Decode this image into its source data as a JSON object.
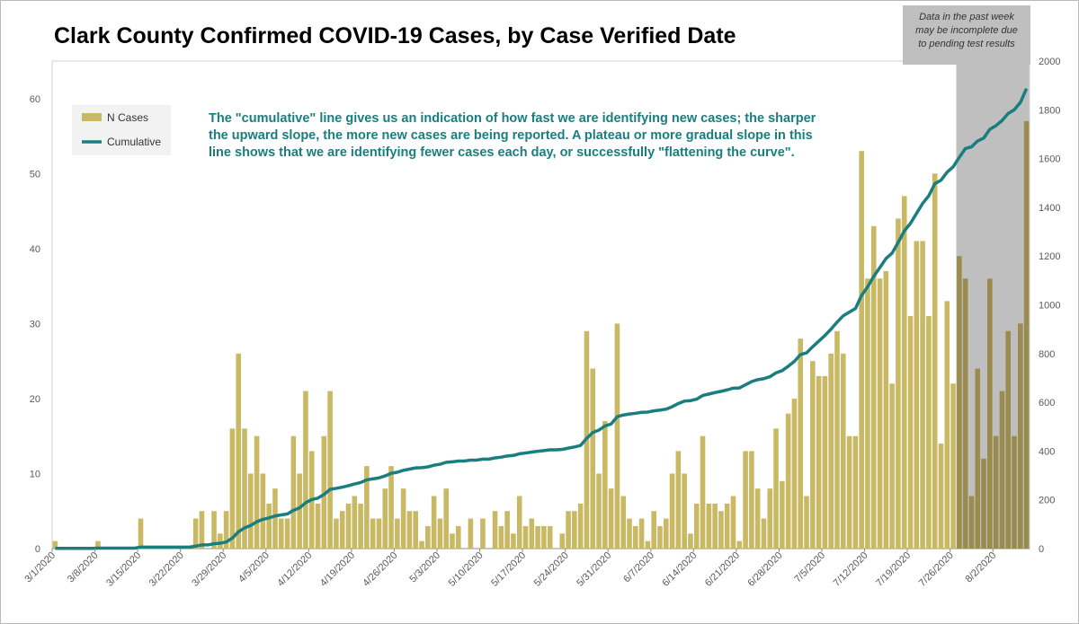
{
  "chart_data": {
    "type": "bar",
    "title": "Clark County Confirmed COVID-19 Cases, by Case Verified Date",
    "annotation": "The \"cumulative\" line gives  us an indication of how fast we are identifying new cases; the sharper the upward slope, the more new cases are being reported. A plateau or more gradual slope in this line shows that we are identifying fewer cases each day, or successfully \"flattening the curve\".",
    "annotation_lines": [
      "The \"cumulative\" line gives  us an indication of how fast we are identifying new cases; the sharper",
      "the upward slope, the more new cases are being reported. A plateau or more gradual slope in this",
      "line shows that we are identifying fewer cases each day, or successfully \"flattening the curve\"."
    ],
    "shaded_note": "Data in the past week may be incomplete due to pending test results",
    "shaded_note_lines": [
      "Data in the past week",
      "may be incomplete due",
      "to pending test results"
    ],
    "shaded_range": [
      "7/27/2020",
      "8/2/2020"
    ],
    "start_date": "3/1/2020",
    "x_tick_labels": [
      "3/1/2020",
      "3/8/2020",
      "3/15/2020",
      "3/22/2020",
      "3/29/2020",
      "4/5/2020",
      "4/12/2020",
      "4/19/2020",
      "4/26/2020",
      "5/3/2020",
      "5/10/2020",
      "5/17/2020",
      "5/24/2020",
      "5/31/2020",
      "6/7/2020",
      "6/14/2020",
      "6/21/2020",
      "6/28/2020",
      "7/5/2020",
      "7/12/2020",
      "7/19/2020",
      "7/26/2020",
      "8/2/2020"
    ],
    "y_left": {
      "range": [
        0,
        65
      ],
      "ticks": [
        0,
        10,
        20,
        30,
        40,
        50,
        60
      ]
    },
    "y_right": {
      "range": [
        0,
        2000
      ],
      "ticks": [
        0,
        200,
        400,
        600,
        800,
        1000,
        1200,
        1400,
        1600,
        1800,
        2000
      ]
    },
    "legend_position": "top-left",
    "series": [
      {
        "name": "N Cases",
        "kind": "bar",
        "axis": "left",
        "color": "#c9b965",
        "shaded_color": "#9a8c4f",
        "values": [
          1,
          0,
          0,
          0,
          0,
          0,
          0,
          1,
          0,
          0,
          0,
          0,
          0,
          0,
          4,
          0,
          0,
          0,
          0,
          0,
          0,
          0,
          0,
          4,
          5,
          0,
          5,
          2,
          5,
          16,
          26,
          16,
          10,
          15,
          10,
          6,
          8,
          4,
          4,
          15,
          10,
          21,
          13,
          6,
          15,
          21,
          4,
          5,
          6,
          7,
          6,
          11,
          4,
          4,
          8,
          11,
          4,
          8,
          5,
          5,
          1,
          3,
          7,
          4,
          8,
          2,
          3,
          0,
          4,
          0,
          4,
          0,
          5,
          3,
          5,
          2,
          7,
          3,
          4,
          3,
          3,
          3,
          0,
          2,
          5,
          5,
          6,
          29,
          24,
          10,
          17,
          8,
          30,
          7,
          4,
          3,
          4,
          1,
          5,
          3,
          4,
          10,
          13,
          10,
          2,
          6,
          15,
          6,
          6,
          5,
          6,
          7,
          1,
          13,
          13,
          8,
          4,
          8,
          16,
          9,
          18,
          20,
          28,
          7,
          25,
          23,
          23,
          26,
          29,
          26,
          15,
          15,
          53,
          36,
          43,
          36,
          37,
          22,
          44,
          47,
          31,
          41,
          41,
          31,
          50,
          14,
          33,
          22,
          39,
          36,
          7,
          24,
          12,
          36,
          15,
          21,
          29,
          15,
          30,
          57
        ]
      },
      {
        "name": "Cumulative",
        "kind": "line",
        "axis": "right",
        "color": "#1a7e7f",
        "values": [
          1,
          1,
          1,
          1,
          1,
          1,
          1,
          2,
          2,
          2,
          2,
          2,
          2,
          2,
          6,
          6,
          6,
          6,
          6,
          6,
          6,
          6,
          6,
          10,
          15,
          15,
          20,
          22,
          27,
          43,
          69,
          85,
          95,
          110,
          120,
          126,
          134,
          138,
          142,
          157,
          167,
          188,
          201,
          207,
          222,
          243,
          247,
          252,
          258,
          265,
          271,
          282,
          286,
          290,
          298,
          309,
          313,
          321,
          326,
          331,
          332,
          335,
          342,
          346,
          354,
          356,
          359,
          359,
          363,
          363,
          367,
          367,
          372,
          375,
          380,
          382,
          389,
          392,
          396,
          399,
          402,
          405,
          405,
          407,
          412,
          417,
          423,
          452,
          476,
          486,
          503,
          511,
          541,
          548,
          552,
          555,
          559,
          560,
          565,
          568,
          572,
          582,
          595,
          605,
          607,
          613,
          628,
          634,
          640,
          645,
          651,
          658,
          659,
          672,
          685,
          693,
          697,
          705,
          721,
          730,
          748,
          768,
          796,
          803,
          828,
          851,
          874,
          900,
          929,
          955,
          970,
          985,
          1038,
          1074,
          1117,
          1153,
          1190,
          1212,
          1256,
          1303,
          1334,
          1375,
          1416,
          1447,
          1497,
          1511,
          1544,
          1566,
          1605,
          1641,
          1648,
          1672,
          1684,
          1720,
          1735,
          1756,
          1785,
          1800,
          1830,
          1887
        ]
      }
    ]
  }
}
